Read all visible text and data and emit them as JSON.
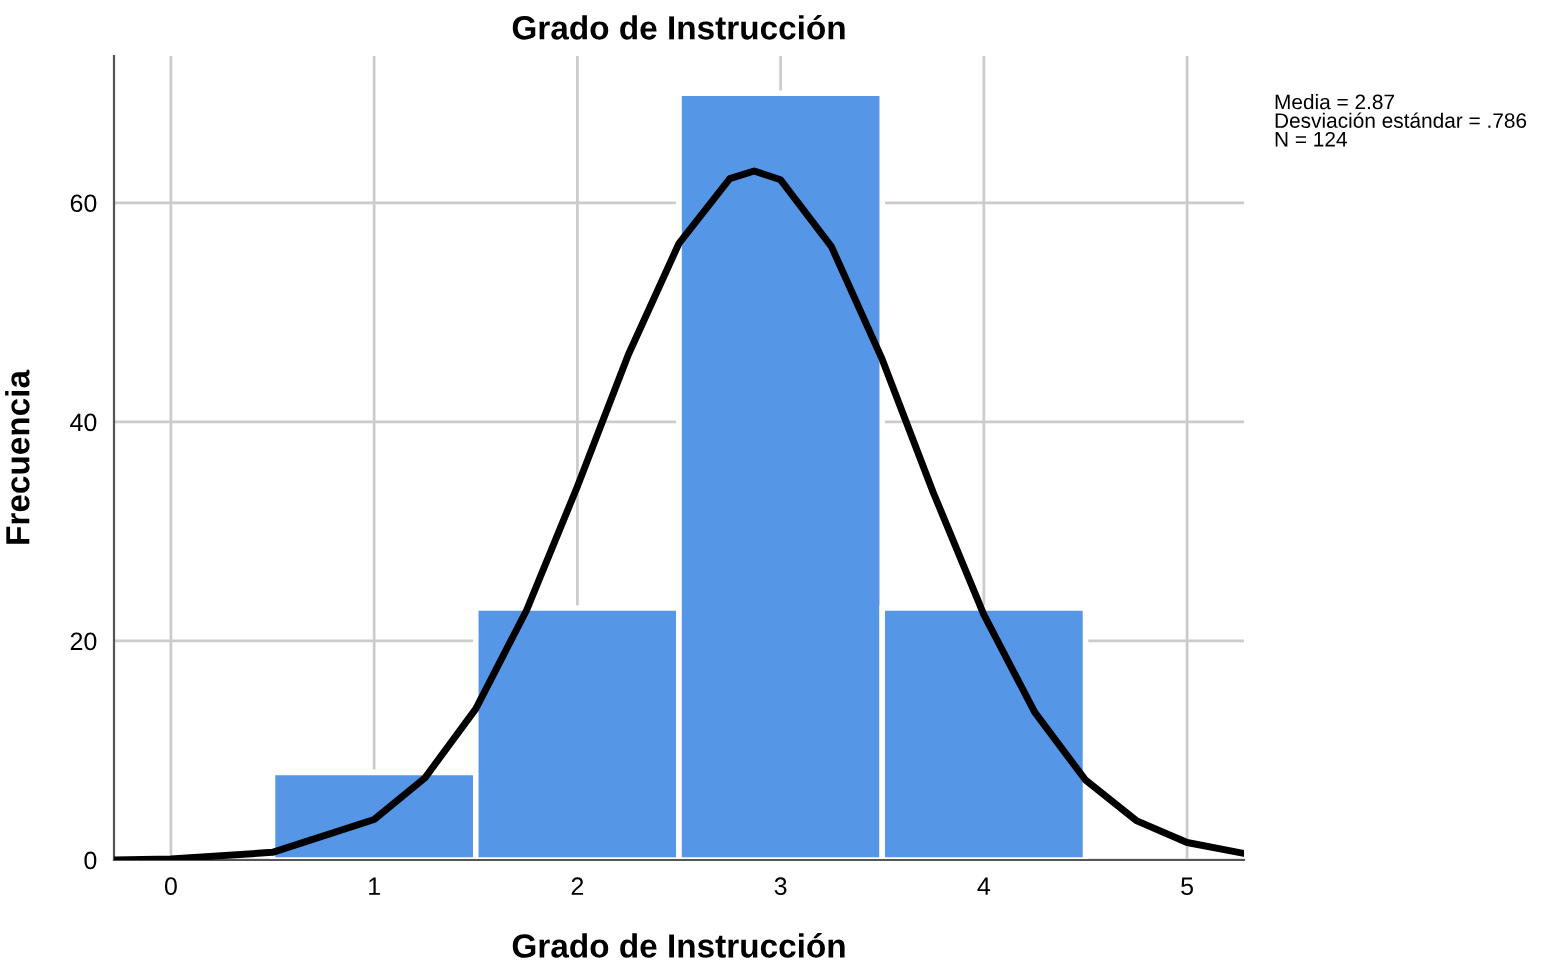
{
  "chart_data": {
    "type": "histogram",
    "title": "Grado de Instrucción",
    "xlabel": "Grado de Instrucción",
    "ylabel": "Frecuencia",
    "bins": [
      0.5,
      1.5,
      2.5,
      3.5,
      4.5
    ],
    "values": [
      8,
      23,
      70,
      23
    ],
    "color": "#5596e6",
    "series": [
      {
        "type": "line",
        "color": "#000000",
        "x": [
          -0.28,
          0,
          0.5,
          1,
          1.25,
          1.5,
          1.75,
          2,
          2.25,
          2.5,
          2.75,
          2.87,
          3,
          3.25,
          3.5,
          3.75,
          4,
          4.25,
          4.5,
          4.75,
          5,
          5.28
        ],
        "values": [
          0.0,
          0.1,
          0.7,
          3.7,
          7.5,
          13.8,
          22.8,
          34.1,
          46.1,
          56.3,
          62.2,
          62.9,
          62.1,
          56.0,
          45.7,
          33.6,
          22.4,
          13.5,
          7.3,
          3.6,
          1.6,
          0.6
        ]
      }
    ],
    "xlim": [
      -0.28,
      5.28
    ],
    "ylim": [
      0,
      73.4
    ],
    "xticks": [
      0,
      1,
      2,
      3,
      4,
      5
    ],
    "yticks": [
      0,
      20,
      40,
      60
    ],
    "grid": true,
    "annotations": [
      "Media = 2.87\nDesviación estándar = .786\nN = 124"
    ]
  }
}
